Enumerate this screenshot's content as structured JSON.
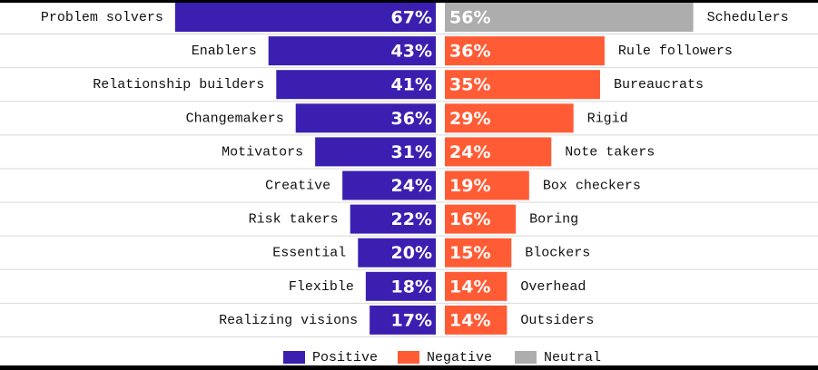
{
  "chart_data": {
    "type": "diverging_bar",
    "xlim": [
      0,
      70
    ],
    "left_categories": [
      "Problem solvers",
      "Enablers",
      "Relationship builders",
      "Changemakers",
      "Motivators",
      "Creative",
      "Risk takers",
      "Essential",
      "Flexible",
      "Realizing visions"
    ],
    "right_categories": [
      "Schedulers",
      "Rule followers",
      "Bureaucrats",
      "Rigid",
      "Note takers",
      "Box checkers",
      "Boring",
      "Blockers",
      "Overhead",
      "Outsiders"
    ],
    "series": [
      {
        "name": "Positive",
        "color": "#3b1fb0",
        "side": "left",
        "values": [
          67,
          43,
          41,
          36,
          31,
          24,
          22,
          20,
          18,
          17
        ],
        "value_labels": [
          "67%",
          "43%",
          "41%",
          "36%",
          "31%",
          "24%",
          "22%",
          "20%",
          "18%",
          "17%"
        ]
      },
      {
        "name": "Negative",
        "color": "#ff5c35",
        "side": "right",
        "values": [
          null,
          36,
          35,
          29,
          24,
          19,
          16,
          15,
          14,
          14
        ],
        "value_labels": [
          null,
          "36%",
          "35%",
          "29%",
          "24%",
          "19%",
          "16%",
          "15%",
          "14%",
          "14%"
        ]
      },
      {
        "name": "Neutral",
        "color": "#adadad",
        "side": "right",
        "values": [
          56,
          null,
          null,
          null,
          null,
          null,
          null,
          null,
          null,
          null
        ],
        "value_labels": [
          "56%",
          null,
          null,
          null,
          null,
          null,
          null,
          null,
          null,
          null
        ]
      }
    ]
  }
}
